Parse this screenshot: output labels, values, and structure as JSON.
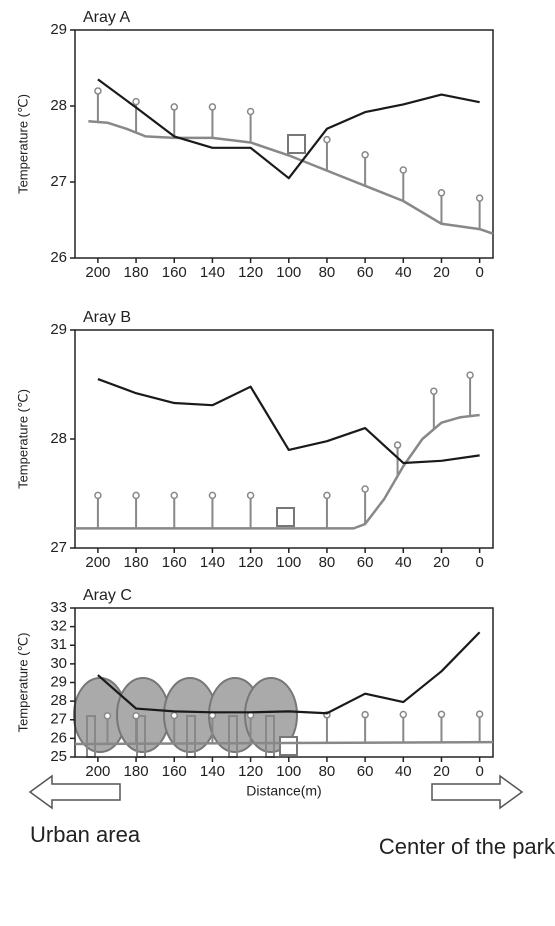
{
  "chart_data": [
    {
      "type": "line",
      "title": "Aray A",
      "ylabel": "Temperature (℃)",
      "xlim": [
        212,
        -7
      ],
      "xticks": [
        200,
        180,
        160,
        140,
        120,
        100,
        80,
        60,
        40,
        20,
        0
      ],
      "ylim": [
        26,
        29
      ],
      "yticks": [
        26,
        27,
        28,
        29
      ],
      "series": [
        {
          "color": "#1a1a1a",
          "x": [
            200,
            180,
            160,
            140,
            120,
            100,
            80,
            60,
            40,
            20,
            0
          ],
          "values": [
            28.35,
            27.98,
            27.6,
            27.45,
            27.45,
            27.05,
            27.7,
            27.92,
            28.02,
            28.15,
            28.05
          ]
        },
        {
          "color": "#888888",
          "x": [
            205,
            195,
            185,
            175,
            160,
            140,
            120,
            100,
            80,
            60,
            40,
            20,
            0,
            -7
          ],
          "values": [
            27.8,
            27.78,
            27.7,
            27.6,
            27.58,
            27.58,
            27.52,
            27.35,
            27.15,
            26.95,
            26.75,
            26.45,
            26.38,
            26.32
          ]
        }
      ]
    },
    {
      "type": "line",
      "title": "Aray B",
      "ylabel": "Temperature (℃)",
      "xlim": [
        212,
        -7
      ],
      "xticks": [
        200,
        180,
        160,
        140,
        120,
        100,
        80,
        60,
        40,
        20,
        0
      ],
      "ylim": [
        27,
        29
      ],
      "yticks": [
        27,
        28,
        29
      ],
      "series": [
        {
          "color": "#1a1a1a",
          "x": [
            200,
            180,
            160,
            140,
            120,
            100,
            80,
            60,
            40,
            20,
            0
          ],
          "values": [
            28.55,
            28.42,
            28.33,
            28.31,
            28.48,
            27.9,
            27.98,
            28.1,
            27.78,
            27.8,
            27.85
          ]
        },
        {
          "color": "#888888",
          "x": [
            212,
            66,
            60,
            50,
            40,
            30,
            20,
            10,
            0
          ],
          "values": [
            27.18,
            27.18,
            27.22,
            27.45,
            27.75,
            28.0,
            28.15,
            28.2,
            28.22
          ]
        }
      ]
    },
    {
      "type": "line",
      "title": "Aray C",
      "ylabel": "Temperature (℃)",
      "xlabel": "Distance(m)",
      "xlim": [
        212,
        -7
      ],
      "xticks": [
        200,
        180,
        160,
        140,
        120,
        100,
        80,
        60,
        40,
        20,
        0
      ],
      "ylim": [
        25,
        33
      ],
      "yticks": [
        25,
        26,
        27,
        28,
        29,
        30,
        31,
        32,
        33
      ],
      "series": [
        {
          "color": "#1a1a1a",
          "x": [
            200,
            180,
            160,
            140,
            120,
            100,
            80,
            60,
            40,
            20,
            0
          ],
          "values": [
            29.4,
            27.6,
            27.45,
            27.4,
            27.4,
            27.45,
            27.35,
            28.4,
            27.95,
            29.6,
            31.7
          ]
        },
        {
          "color": "#888888",
          "x": [
            212,
            -7
          ],
          "values": [
            25.7,
            25.8
          ]
        }
      ]
    }
  ],
  "labels": {
    "left": "Urban area",
    "right": "Center of the park"
  }
}
